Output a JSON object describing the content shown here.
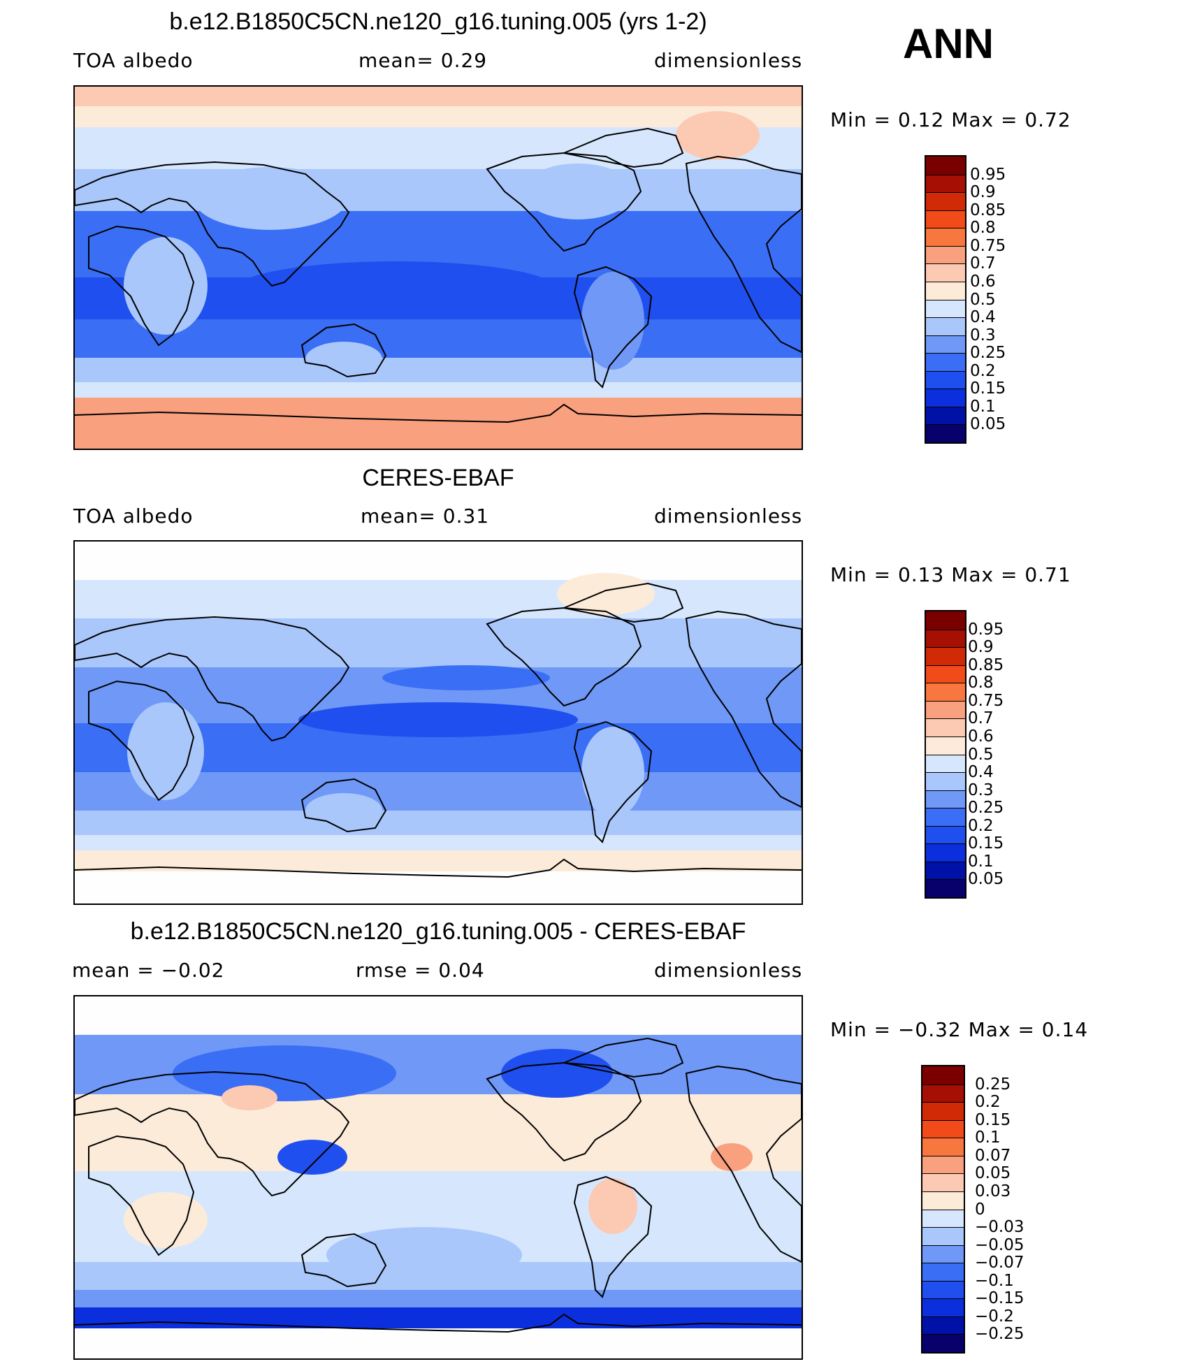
{
  "season": "ANN",
  "colors": {
    "seq": [
      "#fefefe",
      "#08006b",
      "#0011a8",
      "#0b2fdc",
      "#1f4fee",
      "#3a6ef4",
      "#6f98f7",
      "#a9c7fb",
      "#d6e7fd",
      "#fcebd9",
      "#fcc9b3",
      "#f9a07e",
      "#f8773f",
      "#f14b1a",
      "#d02b06",
      "#a50f04",
      "#7a0000"
    ],
    "diff": [
      "#fefefe",
      "#08006b",
      "#0011a8",
      "#0b2fdc",
      "#1f4fee",
      "#3a6ef4",
      "#6f98f7",
      "#a9c7fb",
      "#d6e7fd",
      "#fcebd9",
      "#fcc9b3",
      "#f9a07e",
      "#f8773f",
      "#f14b1a",
      "#d02b06",
      "#a50f04",
      "#7a0000"
    ]
  },
  "panels": [
    {
      "id": "model",
      "title": "b.e12.B1850C5CN.ne120_g16.tuning.005 (yrs 1-2)",
      "left_label": "TOA  albedo",
      "mid_label": "mean=     0.29",
      "right_label": "dimensionless",
      "minmax": "Min  =      0.12  Max  =      0.72",
      "colorbar": {
        "labels": [
          "0.95",
          "0.9",
          "0.85",
          "0.8",
          "0.75",
          "0.7",
          "0.6",
          "0.5",
          "0.4",
          "0.3",
          "0.25",
          "0.2",
          "0.15",
          "0.1",
          "0.05"
        ],
        "colors": [
          "#7a0000",
          "#a50f04",
          "#d02b06",
          "#f14b1a",
          "#f8773f",
          "#f9a07e",
          "#fcc9b3",
          "#fcebd9",
          "#d6e7fd",
          "#a9c7fb",
          "#6f98f7",
          "#3a6ef4",
          "#1f4fee",
          "#0b2fdc",
          "#0011a8",
          "#08006b"
        ]
      }
    },
    {
      "id": "obs",
      "title": "CERES-EBAF",
      "left_label": "TOA  albedo",
      "mid_label": "mean=     0.31",
      "right_label": "dimensionless",
      "minmax": "Min  =      0.13  Max  =      0.71",
      "colorbar": {
        "labels": [
          "0.95",
          "0.9",
          "0.85",
          "0.8",
          "0.75",
          "0.7",
          "0.6",
          "0.5",
          "0.4",
          "0.3",
          "0.25",
          "0.2",
          "0.15",
          "0.1",
          "0.05"
        ],
        "colors": [
          "#7a0000",
          "#a50f04",
          "#d02b06",
          "#f14b1a",
          "#f8773f",
          "#f9a07e",
          "#fcc9b3",
          "#fcebd9",
          "#d6e7fd",
          "#a9c7fb",
          "#6f98f7",
          "#3a6ef4",
          "#1f4fee",
          "#0b2fdc",
          "#0011a8",
          "#08006b"
        ]
      }
    },
    {
      "id": "diff",
      "title": "b.e12.B1850C5CN.ne120_g16.tuning.005 - CERES-EBAF",
      "left_label": "mean  =    −0.02",
      "mid_label": "rmse  =     0.04",
      "right_label": "dimensionless",
      "minmax": "Min  =    −0.32  Max  =     0.14",
      "colorbar": {
        "labels": [
          "0.25",
          "0.2",
          "0.15",
          "0.1",
          "0.07",
          "0.05",
          "0.03",
          "0",
          "−0.03",
          "−0.05",
          "−0.07",
          "−0.1",
          "−0.15",
          "−0.2",
          "−0.25"
        ],
        "colors": [
          "#7a0000",
          "#a50f04",
          "#d02b06",
          "#f14b1a",
          "#f8773f",
          "#f9a07e",
          "#fcc9b3",
          "#fcebd9",
          "#d6e7fd",
          "#a9c7fb",
          "#6f98f7",
          "#3a6ef4",
          "#1f4fee",
          "#0b2fdc",
          "#0011a8",
          "#08006b"
        ]
      }
    }
  ]
}
